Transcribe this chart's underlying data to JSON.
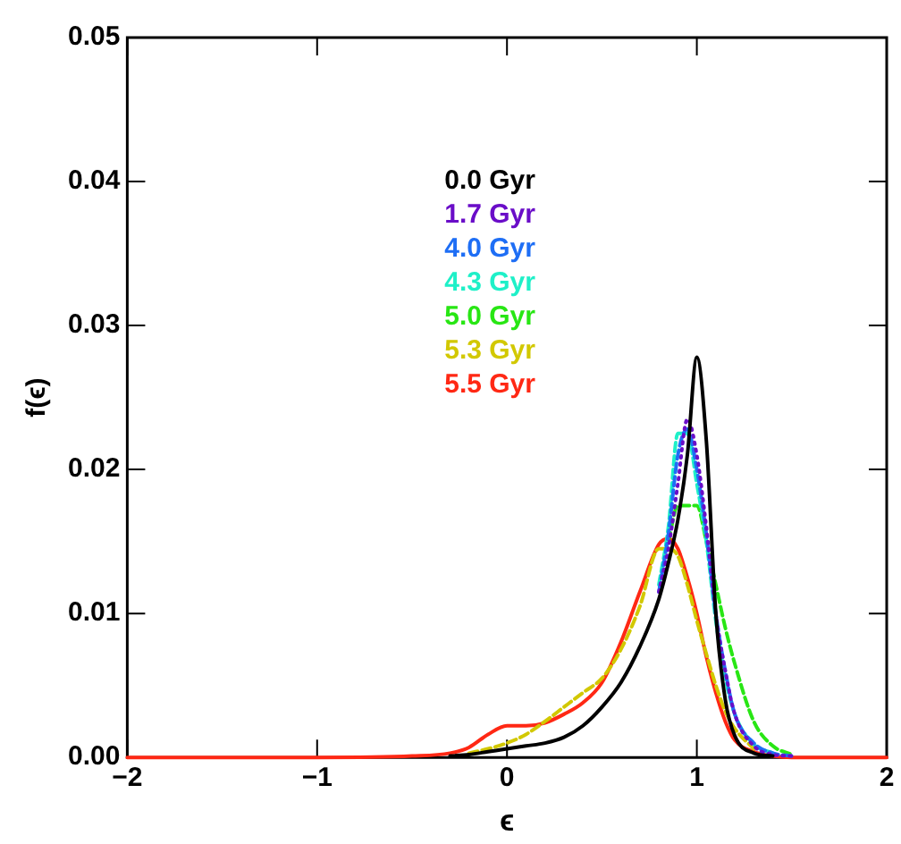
{
  "chart_data": {
    "type": "line",
    "xlabel": "ϵ",
    "ylabel": "f(ϵ)",
    "x": [
      -2,
      -1,
      -0.5,
      -0.3,
      -0.2,
      -0.1,
      0,
      0.1,
      0.2,
      0.3,
      0.4,
      0.5,
      0.6,
      0.7,
      0.8,
      0.85,
      0.9,
      0.95,
      1.0,
      1.05,
      1.1,
      1.15,
      1.2,
      1.3,
      1.4,
      1.5,
      2
    ],
    "xlim": [
      -2,
      2
    ],
    "xticks": [
      -2,
      -1,
      0,
      1,
      2
    ],
    "ylim": [
      0,
      0.05
    ],
    "yticks": [
      {
        "value": 0,
        "label": "0.00"
      },
      0.01,
      0.02,
      0.03,
      0.04,
      0.05
    ],
    "grid": false,
    "legend": "top",
    "marker": "none",
    "series": [
      {
        "name": "0.0 Gyr",
        "color": "#000000",
        "line_style": "solid",
        "x": [
          -0.3,
          -0.2,
          -0.1,
          0,
          0.1,
          0.2,
          0.3,
          0.4,
          0.5,
          0.6,
          0.7,
          0.8,
          0.85,
          0.9,
          0.95,
          1.0,
          1.05,
          1.1,
          1.15,
          1.2,
          1.3,
          1.4
        ],
        "values": [
          0.0001,
          0.0002,
          0.0004,
          0.0006,
          0.0008,
          0.001,
          0.0014,
          0.0022,
          0.0035,
          0.0052,
          0.0077,
          0.011,
          0.0135,
          0.0165,
          0.021,
          0.0278,
          0.022,
          0.01,
          0.004,
          0.0015,
          0.0003,
          0.0001
        ]
      },
      {
        "name": "1.7 Gyr",
        "color": "#6a0dc8",
        "line_style": "dotted",
        "x": [
          0.8,
          0.85,
          0.9,
          0.95,
          1.0,
          1.05,
          1.1,
          1.15,
          1.2,
          1.3,
          1.4,
          1.5
        ],
        "values": [
          0.0115,
          0.0145,
          0.019,
          0.0235,
          0.021,
          0.016,
          0.01,
          0.006,
          0.003,
          0.0008,
          0.0002,
          0.0001
        ]
      },
      {
        "name": "4.0 Gyr",
        "color": "#1e6ef5",
        "line_style": "dashed",
        "x": [
          0.8,
          0.85,
          0.9,
          0.95,
          1.0,
          1.05,
          1.1,
          1.15,
          1.2,
          1.3,
          1.4,
          1.5
        ],
        "values": [
          0.0115,
          0.0155,
          0.021,
          0.0228,
          0.02,
          0.0155,
          0.01,
          0.006,
          0.003,
          0.001,
          0.0003,
          0.0001
        ]
      },
      {
        "name": "4.3 Gyr",
        "color": "#1ef0c8",
        "line_style": "dashed",
        "x": [
          0.8,
          0.85,
          0.9,
          0.95,
          1.0,
          1.05,
          1.1,
          1.15,
          1.2,
          1.3,
          1.4
        ],
        "values": [
          0.012,
          0.016,
          0.0225,
          0.0225,
          0.019,
          0.015,
          0.0095,
          0.0055,
          0.003,
          0.0009,
          0.0003
        ]
      },
      {
        "name": "5.0 Gyr",
        "color": "#28e614",
        "line_style": "dashed",
        "x": [
          0.85,
          0.9,
          0.95,
          1.0,
          1.05,
          1.1,
          1.15,
          1.2,
          1.3,
          1.4,
          1.5
        ],
        "values": [
          0.015,
          0.0175,
          0.0175,
          0.0175,
          0.015,
          0.012,
          0.009,
          0.0065,
          0.0025,
          0.0008,
          0.0002
        ]
      },
      {
        "name": "5.3 Gyr",
        "color": "#d2c800",
        "line_style": "dashed",
        "x": [
          -0.2,
          -0.1,
          0,
          0.1,
          0.2,
          0.3,
          0.4,
          0.5,
          0.6,
          0.7,
          0.8,
          0.85,
          0.9,
          0.95,
          1.0,
          1.05,
          1.1,
          1.15,
          1.2,
          1.3
        ],
        "values": [
          0.0003,
          0.0006,
          0.001,
          0.0016,
          0.0025,
          0.0035,
          0.0045,
          0.0055,
          0.0075,
          0.0105,
          0.0145,
          0.0145,
          0.014,
          0.012,
          0.0095,
          0.0072,
          0.005,
          0.0032,
          0.002,
          0.0006
        ]
      },
      {
        "name": "5.5 Gyr",
        "color": "#ff2814",
        "line_style": "solid",
        "values": [
          0,
          0,
          0.0001,
          0.0003,
          0.0007,
          0.0016,
          0.0022,
          0.0022,
          0.0024,
          0.003,
          0.0038,
          0.0052,
          0.008,
          0.0115,
          0.0148,
          0.0152,
          0.0145,
          0.0125,
          0.01,
          0.007,
          0.0045,
          0.0025,
          0.0012,
          0.0004,
          0.0001,
          0,
          0
        ]
      }
    ]
  }
}
